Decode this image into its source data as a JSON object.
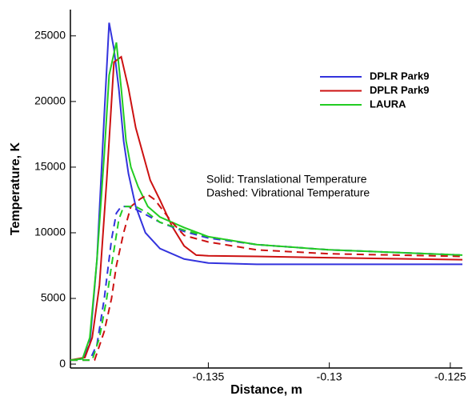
{
  "chart_data": {
    "type": "line",
    "x_label": "Distance, m",
    "y_label": "Temperature, K",
    "annotations": [
      "Solid: Translational Temperature",
      "Dashed: Vibrational Temperature"
    ],
    "xlim": [
      -0.1407,
      -0.1245
    ],
    "xticks": [
      -0.135,
      -0.13,
      -0.125
    ],
    "ylim": [
      -300,
      27000
    ],
    "yticks": [
      0,
      5000,
      10000,
      15000,
      20000,
      25000
    ],
    "series": [
      {
        "name": "DPLR Park9",
        "color": "#3333dd",
        "dashed": false,
        "x": [
          -0.1407,
          -0.1402,
          -0.1399,
          -0.1396,
          -0.1393,
          -0.1391,
          -0.1389,
          -0.1387,
          -0.1385,
          -0.1383,
          -0.138,
          -0.1376,
          -0.137,
          -0.136,
          -0.135,
          -0.133,
          -0.13,
          -0.1245
        ],
        "values": [
          300,
          400,
          1500,
          8000,
          19000,
          26000,
          24000,
          21000,
          17000,
          14500,
          12000,
          10000,
          8800,
          8000,
          7700,
          7600,
          7600,
          7600
        ]
      },
      {
        "name": "DPLR Park9",
        "color": "#cc1111",
        "dashed": false,
        "x": [
          -0.1407,
          -0.1401,
          -0.1398,
          -0.1395,
          -0.1392,
          -0.1389,
          -0.1386,
          -0.1383,
          -0.138,
          -0.1377,
          -0.1374,
          -0.137,
          -0.1365,
          -0.136,
          -0.1355,
          -0.135,
          -0.133,
          -0.13,
          -0.1245
        ],
        "values": [
          300,
          500,
          2000,
          6000,
          14000,
          23000,
          23400,
          21000,
          18000,
          16000,
          14000,
          12500,
          10500,
          9000,
          8300,
          8250,
          8200,
          8100,
          7950
        ]
      },
      {
        "name": "LAURA",
        "color": "#22cc22",
        "dashed": false,
        "x": [
          -0.1407,
          -0.1402,
          -0.1399,
          -0.1396,
          -0.1393,
          -0.1391,
          -0.1388,
          -0.1386,
          -0.1384,
          -0.1382,
          -0.1379,
          -0.1375,
          -0.137,
          -0.136,
          -0.135,
          -0.133,
          -0.13,
          -0.1245
        ],
        "values": [
          300,
          400,
          2000,
          8000,
          16000,
          22000,
          24500,
          21000,
          17000,
          15000,
          13500,
          12000,
          11200,
          10400,
          9700,
          9100,
          8700,
          8300
        ]
      },
      {
        "color": "#3333dd",
        "dashed": true,
        "x": [
          -0.1407,
          -0.1399,
          -0.1396,
          -0.1393,
          -0.139,
          -0.1388,
          -0.1386,
          -0.1383,
          -0.138,
          -0.1375,
          -0.137,
          -0.136,
          -0.135,
          -0.133,
          -0.13,
          -0.1245
        ],
        "values": [
          300,
          300,
          1500,
          5000,
          9500,
          11500,
          12000,
          12000,
          11800,
          11300,
          10800,
          10100,
          9600,
          9100,
          8700,
          8300
        ]
      },
      {
        "color": "#cc1111",
        "dashed": true,
        "x": [
          -0.1407,
          -0.1397,
          -0.1393,
          -0.139,
          -0.1388,
          -0.1385,
          -0.1382,
          -0.1378,
          -0.1375,
          -0.1372,
          -0.137,
          -0.1365,
          -0.136,
          -0.135,
          -0.133,
          -0.13,
          -0.1245
        ],
        "values": [
          300,
          300,
          2500,
          5000,
          7500,
          10000,
          12000,
          12600,
          12900,
          12500,
          12000,
          10800,
          9800,
          9300,
          8700,
          8400,
          8200
        ]
      },
      {
        "color": "#22cc22",
        "dashed": true,
        "x": [
          -0.1407,
          -0.1398,
          -0.1395,
          -0.1392,
          -0.139,
          -0.1387,
          -0.1385,
          -0.138,
          -0.1375,
          -0.137,
          -0.136,
          -0.135,
          -0.133,
          -0.13,
          -0.1245
        ],
        "values": [
          300,
          300,
          2000,
          5000,
          7500,
          11000,
          12000,
          12000,
          11500,
          10800,
          10200,
          9700,
          9100,
          8700,
          8300
        ]
      }
    ]
  }
}
